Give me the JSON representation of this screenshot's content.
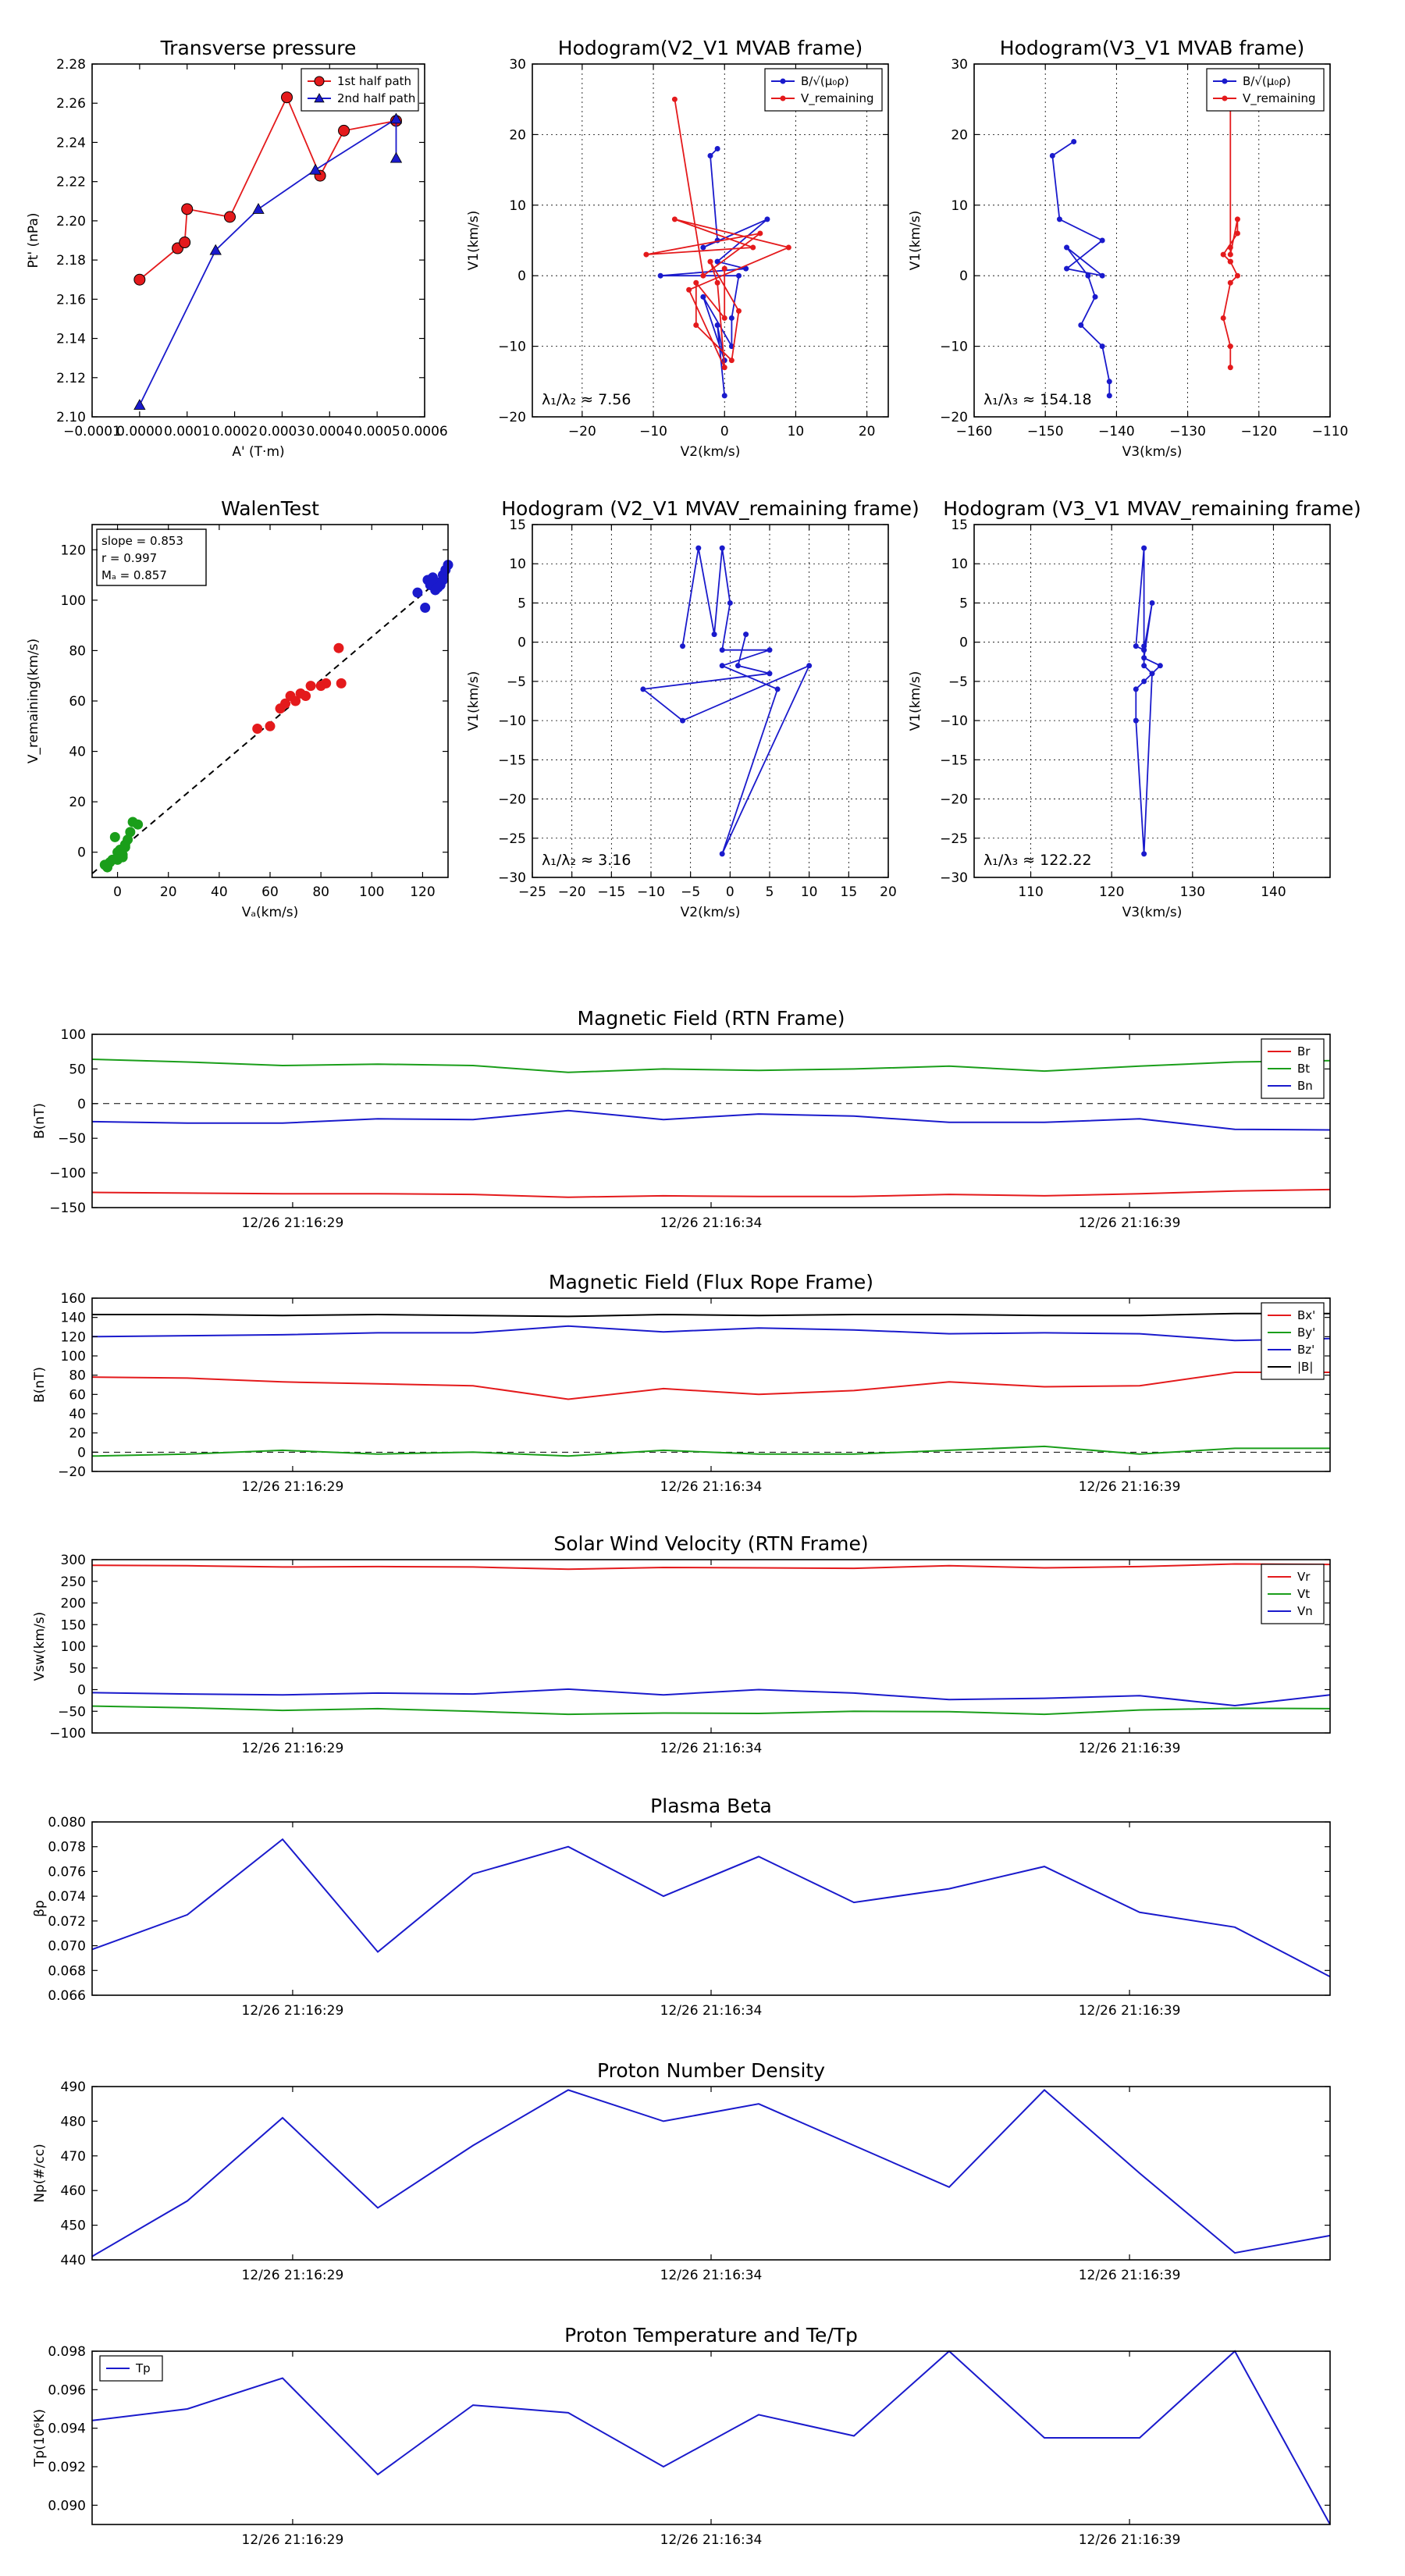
{
  "charts": [
    {
      "id": "tp",
      "type": "scatter-line",
      "title": "Transverse pressure",
      "xlabel": "A' (T·m)",
      "ylabel": "Pt' (nPa)",
      "xlim": [
        -0.0001,
        0.0006
      ],
      "ylim": [
        2.1,
        2.28
      ],
      "xticks": [
        -0.0001,
        0,
        0.0001,
        0.0002,
        0.0003,
        0.0004,
        0.0005,
        0.0006
      ],
      "xticklabels": [
        "−0.0001",
        "0.0000",
        "0.0001",
        "0.0002",
        "0.0003",
        "0.0004",
        "0.0005",
        "0.0006"
      ],
      "yticks": [
        2.1,
        2.12,
        2.14,
        2.16,
        2.18,
        2.2,
        2.22,
        2.24,
        2.26,
        2.28
      ],
      "yticklabels": [
        "2.10",
        "2.12",
        "2.14",
        "2.16",
        "2.18",
        "2.20",
        "2.22",
        "2.24",
        "2.26",
        "2.28"
      ],
      "grid": false,
      "legend": "top-right",
      "series": [
        {
          "name": "1st half path",
          "color": "#e41a1c",
          "marker": "circle",
          "x": [
            0.0,
            8e-05,
            9.5e-05,
            0.0001,
            0.00019,
            0.00031,
            0.00038,
            0.00043,
            0.00054
          ],
          "y": [
            2.17,
            2.186,
            2.189,
            2.206,
            2.202,
            2.263,
            2.223,
            2.246,
            2.251
          ]
        },
        {
          "name": "2nd half path",
          "color": "#1a1acc",
          "marker": "triangle",
          "x": [
            0.0,
            0.00016,
            0.00025,
            0.00037,
            0.00054,
            0.00054
          ],
          "y": [
            2.106,
            2.185,
            2.206,
            2.226,
            2.252,
            2.232
          ]
        }
      ]
    },
    {
      "id": "h1",
      "type": "line",
      "title": "Hodogram(V2_V1 MVAB frame)",
      "xlabel": "V2(km/s)",
      "ylabel": "V1(km/s)",
      "xlim": [
        -27,
        23
      ],
      "ylim": [
        -20,
        30
      ],
      "xticks": [
        -20,
        -10,
        0,
        10,
        20
      ],
      "yticks": [
        -20,
        -10,
        0,
        10,
        20,
        30
      ],
      "grid": true,
      "legend": "top-right",
      "annotation": "λ₁/λ₂ ≈ 7.56",
      "series": [
        {
          "name": "B/√(μ₀ρ)",
          "color": "#1a1acc",
          "x": [
            -1,
            -2,
            -1,
            -3,
            6,
            -1,
            3,
            -9,
            2,
            1,
            1,
            -3,
            0,
            -1,
            0
          ],
          "y": [
            18,
            17,
            5,
            4,
            8,
            2,
            1,
            0,
            0,
            -6,
            -10,
            -3,
            -12,
            -7,
            -17
          ]
        },
        {
          "name": "V_remaining",
          "color": "#e41a1c",
          "x": [
            -7,
            -3,
            5,
            -11,
            4,
            -7,
            9,
            -5,
            0,
            -1,
            -2,
            2,
            1,
            -4,
            -4,
            0,
            0
          ],
          "y": [
            25,
            0,
            6,
            3,
            4,
            8,
            4,
            -2,
            -13,
            -1,
            2,
            -5,
            -12,
            -7,
            -1,
            -6,
            1
          ]
        }
      ]
    },
    {
      "id": "h2",
      "type": "line",
      "title": "Hodogram(V3_V1 MVAB frame)",
      "xlabel": "V3(km/s)",
      "ylabel": "V1(km/s)",
      "xlim": [
        -160,
        -110
      ],
      "ylim": [
        -20,
        30
      ],
      "xticks": [
        -160,
        -150,
        -140,
        -130,
        -120,
        -110
      ],
      "yticks": [
        -20,
        -10,
        0,
        10,
        20,
        30
      ],
      "grid": true,
      "legend": "top-right",
      "annotation": "λ₁/λ₃ ≈ 154.18",
      "series": [
        {
          "name": "B/√(μ₀ρ)",
          "color": "#1a1acc",
          "x": [
            -146,
            -149,
            -148,
            -142,
            -147,
            -142,
            -147,
            -144,
            -143,
            -145,
            -142,
            -141,
            -141
          ],
          "y": [
            19,
            17,
            8,
            5,
            1,
            0,
            4,
            0,
            -3,
            -7,
            -10,
            -15,
            -17
          ]
        },
        {
          "name": "V_remaining",
          "color": "#e41a1c",
          "x": [
            -124,
            -124,
            -124,
            -123,
            -123,
            -125,
            -124,
            -124,
            -123,
            -124,
            -125,
            -124,
            -124
          ],
          "y": [
            25,
            4,
            3,
            8,
            6,
            3,
            2,
            2,
            0,
            -1,
            -6,
            -10,
            -13
          ]
        }
      ]
    },
    {
      "id": "walen",
      "type": "scatter",
      "title": "WalenTest",
      "xlabel": "Vₐ(km/s)",
      "ylabel": "V_remaining(km/s)",
      "xlim": [
        -10,
        130
      ],
      "ylim": [
        -10,
        130
      ],
      "xticks": [
        0,
        20,
        40,
        60,
        80,
        100,
        120
      ],
      "yticks": [
        0,
        20,
        40,
        60,
        80,
        100,
        120
      ],
      "grid": false,
      "fitline": {
        "x": [
          -10,
          130
        ],
        "y": [
          -8.5,
          111
        ]
      },
      "stats": [
        "slope = 0.853",
        "r = 0.997",
        "Mₐ = 0.857"
      ],
      "groups": [
        {
          "color": "#1a9e1a",
          "x": [
            -5,
            -3,
            -2,
            0,
            1,
            2,
            3,
            3,
            4,
            5,
            6,
            8,
            -1,
            -4,
            0,
            2
          ],
          "y": [
            -5,
            -4,
            -3,
            0,
            1,
            -1,
            3,
            2,
            5,
            8,
            12,
            11,
            6,
            -6,
            -3,
            -2
          ]
        },
        {
          "color": "#e41a1c",
          "x": [
            55,
            60,
            64,
            66,
            68,
            70,
            72,
            74,
            76,
            80,
            82,
            87,
            88
          ],
          "y": [
            49,
            50,
            57,
            59,
            62,
            60,
            63,
            62,
            66,
            66,
            67,
            81,
            67
          ]
        },
        {
          "color": "#1a1acc",
          "x": [
            118,
            121,
            122,
            123,
            124,
            125,
            126,
            127,
            128,
            129,
            130,
            128,
            126
          ],
          "y": [
            103,
            97,
            108,
            106,
            109,
            104,
            107,
            106,
            110,
            112,
            114,
            108,
            105
          ]
        }
      ]
    },
    {
      "id": "h3",
      "type": "line",
      "title": "Hodogram (V2_V1 MVAV_remaining frame)",
      "xlabel": "V2(km/s)",
      "ylabel": "V1(km/s)",
      "xlim": [
        -25,
        20
      ],
      "ylim": [
        -30,
        15
      ],
      "xticks": [
        -25,
        -20,
        -15,
        -10,
        -5,
        0,
        5,
        10,
        15,
        20
      ],
      "yticks": [
        -30,
        -25,
        -20,
        -15,
        -10,
        -5,
        0,
        5,
        10,
        15
      ],
      "grid": true,
      "legend": "none",
      "annotation": "λ₁/λ₂ ≈ 3.16",
      "series": [
        {
          "name": "V",
          "color": "#1a1acc",
          "x": [
            -6,
            -4,
            -2,
            -1,
            0,
            -1,
            5,
            -1,
            6,
            -1,
            10,
            -6,
            -11,
            5,
            1,
            2
          ],
          "y": [
            -0.5,
            12,
            1,
            12,
            5,
            -1,
            -1,
            -3,
            -6,
            -27,
            -3,
            -10,
            -6,
            -4,
            -3,
            1
          ]
        }
      ]
    },
    {
      "id": "h4",
      "type": "line",
      "title": "Hodogram (V3_V1 MVAV_remaining frame)",
      "xlabel": "V3(km/s)",
      "ylabel": "V1(km/s)",
      "xlim": [
        103,
        147
      ],
      "ylim": [
        -30,
        15
      ],
      "xticks": [
        110,
        120,
        130,
        140
      ],
      "yticks": [
        -30,
        -25,
        -20,
        -15,
        -10,
        -5,
        0,
        5,
        10,
        15
      ],
      "grid": true,
      "legend": "none",
      "annotation": "λ₁/λ₃ ≈ 122.22",
      "series": [
        {
          "name": "V",
          "color": "#1a1acc",
          "x": [
            124,
            124,
            123,
            124,
            125,
            124,
            126,
            124,
            123,
            123,
            124,
            125,
            124,
            124
          ],
          "y": [
            -0.5,
            12,
            -0.5,
            -1,
            5,
            -2,
            -3,
            -5,
            -6,
            -10,
            -27,
            -4,
            -3,
            -1
          ]
        }
      ]
    },
    {
      "id": "bf",
      "type": "timeseries",
      "title": "Magnetic Field (RTN Frame)",
      "ylabel": "B(nT)",
      "ylim": [
        -150,
        100
      ],
      "yticks": [
        -150,
        -100,
        -50,
        0,
        50,
        100
      ],
      "xticklabels": [
        "12/26 21:16:29",
        "12/26 21:16:34",
        "12/26 21:16:39"
      ],
      "zeroline": true,
      "legend": "top-right",
      "series": [
        {
          "name": "Br",
          "color": "#e41a1c",
          "values": [
            -128,
            -129,
            -130,
            -130,
            -131,
            -135,
            -133,
            -134,
            -134,
            -131,
            -133,
            -130,
            -126,
            -124
          ]
        },
        {
          "name": "Bt",
          "color": "#1a9e1a",
          "values": [
            64,
            60,
            55,
            57,
            55,
            45,
            50,
            48,
            50,
            54,
            47,
            54,
            60,
            62
          ]
        },
        {
          "name": "Bn",
          "color": "#1a1acc",
          "values": [
            -26,
            -28,
            -28,
            -22,
            -23,
            -10,
            -23,
            -15,
            -18,
            -27,
            -27,
            -22,
            -37,
            -38
          ]
        }
      ]
    },
    {
      "id": "bfr",
      "type": "timeseries",
      "title": "Magnetic Field (Flux Rope Frame)",
      "ylabel": "B(nT)",
      "ylim": [
        -20,
        160
      ],
      "yticks": [
        -20,
        0,
        20,
        40,
        60,
        80,
        100,
        120,
        140,
        160
      ],
      "xticklabels": [
        "12/26 21:16:29",
        "12/26 21:16:34",
        "12/26 21:16:39"
      ],
      "zeroline": true,
      "legend": "top-right",
      "series": [
        {
          "name": "Bx'",
          "color": "#e41a1c",
          "values": [
            78,
            77,
            73,
            71,
            69,
            55,
            66,
            60,
            64,
            73,
            68,
            69,
            83,
            83
          ]
        },
        {
          "name": "By'",
          "color": "#1a9e1a",
          "values": [
            -4,
            -2,
            2,
            -2,
            0,
            -4,
            2,
            -2,
            -2,
            2,
            6,
            -2,
            4,
            4
          ]
        },
        {
          "name": "Bz'",
          "color": "#1a1acc",
          "values": [
            120,
            121,
            122,
            124,
            124,
            131,
            125,
            129,
            127,
            123,
            124,
            123,
            116,
            118
          ]
        },
        {
          "name": "|B|",
          "color": "#000000",
          "values": [
            143,
            143,
            142,
            143,
            142,
            141,
            143,
            142,
            143,
            143,
            142,
            142,
            144,
            144
          ]
        }
      ]
    },
    {
      "id": "sw",
      "type": "timeseries",
      "title": "Solar Wind Velocity (RTN Frame)",
      "ylabel": "Vsw(km/s)",
      "ylim": [
        -100,
        300
      ],
      "yticks": [
        -100,
        -50,
        0,
        50,
        100,
        150,
        200,
        250,
        300
      ],
      "xticklabels": [
        "12/26 21:16:29",
        "12/26 21:16:34",
        "12/26 21:16:39"
      ],
      "zeroline": false,
      "legend": "top-right",
      "series": [
        {
          "name": "Vr",
          "color": "#e41a1c",
          "values": [
            287,
            286,
            283,
            284,
            283,
            278,
            282,
            281,
            280,
            286,
            281,
            284,
            290,
            289
          ]
        },
        {
          "name": "Vt",
          "color": "#1a9e1a",
          "values": [
            -38,
            -42,
            -48,
            -44,
            -50,
            -57,
            -54,
            -55,
            -50,
            -51,
            -57,
            -47,
            -43,
            -44
          ]
        },
        {
          "name": "Vn",
          "color": "#1a1acc",
          "values": [
            -7,
            -10,
            -12,
            -8,
            -10,
            1,
            -12,
            0,
            -8,
            -23,
            -20,
            -14,
            -37,
            -12
          ]
        }
      ]
    },
    {
      "id": "beta",
      "type": "timeseries",
      "title": "Plasma Beta",
      "ylabel": "βp",
      "ylim": [
        0.066,
        0.08
      ],
      "yticks": [
        0.066,
        0.068,
        0.07,
        0.072,
        0.074,
        0.076,
        0.078,
        0.08
      ],
      "yticklabels": [
        "0.066",
        "0.068",
        "0.070",
        "0.072",
        "0.074",
        "0.076",
        "0.078",
        "0.080"
      ],
      "xticklabels": [
        "12/26 21:16:29",
        "12/26 21:16:34",
        "12/26 21:16:39"
      ],
      "zeroline": false,
      "legend": "none",
      "series": [
        {
          "name": "beta",
          "color": "#1a1acc",
          "values": [
            0.0697,
            0.0725,
            0.0786,
            0.0695,
            0.0758,
            0.078,
            0.074,
            0.0772,
            0.0735,
            0.0746,
            0.0764,
            0.0727,
            0.0715,
            0.0675
          ]
        }
      ]
    },
    {
      "id": "np",
      "type": "timeseries",
      "title": "Proton Number Density",
      "ylabel": "Np(#/cc)",
      "ylim": [
        440,
        490
      ],
      "yticks": [
        440,
        450,
        460,
        470,
        480,
        490
      ],
      "xticklabels": [
        "12/26 21:16:29",
        "12/26 21:16:34",
        "12/26 21:16:39"
      ],
      "zeroline": false,
      "legend": "none",
      "series": [
        {
          "name": "Np",
          "color": "#1a1acc",
          "values": [
            441,
            457,
            481,
            455,
            473,
            489,
            480,
            485,
            473,
            461,
            489,
            465,
            442,
            447
          ]
        }
      ]
    },
    {
      "id": "tp2",
      "type": "timeseries",
      "title": "Proton Temperature and Te/Tp",
      "ylabel": "Tp(10⁶K)",
      "ylim": [
        0.089,
        0.098
      ],
      "yticks": [
        0.09,
        0.092,
        0.094,
        0.096,
        0.098
      ],
      "yticklabels": [
        "0.090",
        "0.092",
        "0.094",
        "0.096",
        "0.098"
      ],
      "xticklabels": [
        "12/26 21:16:29",
        "12/26 21:16:34",
        "12/26 21:16:39"
      ],
      "zeroline": false,
      "legend": "top-left",
      "series": [
        {
          "name": "Tp",
          "color": "#1a1acc",
          "values": [
            0.0944,
            0.095,
            0.0966,
            0.0916,
            0.0952,
            0.0948,
            0.092,
            0.0947,
            0.0936,
            0.098,
            0.0935,
            0.0935,
            0.098,
            0.089
          ]
        }
      ]
    }
  ]
}
